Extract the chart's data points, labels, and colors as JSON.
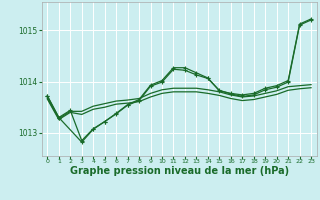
{
  "bg_color": "#cceef0",
  "grid_color": "#e8f8f8",
  "line_color": "#1a6b2a",
  "xlabel": "Graphe pression niveau de la mer (hPa)",
  "xlabel_fontsize": 7.0,
  "xlim": [
    -0.5,
    23.5
  ],
  "ylim": [
    1012.55,
    1015.55
  ],
  "yticks": [
    1013,
    1014,
    1015
  ],
  "xticks": [
    0,
    1,
    2,
    3,
    4,
    5,
    6,
    7,
    8,
    9,
    10,
    11,
    12,
    13,
    14,
    15,
    16,
    17,
    18,
    19,
    20,
    21,
    22,
    23
  ],
  "series": [
    {
      "x": [
        0,
        1,
        2,
        3,
        4,
        5,
        6,
        7,
        8,
        9,
        10,
        11,
        12,
        13,
        14,
        15,
        16,
        17,
        18,
        19,
        20,
        21,
        22,
        23
      ],
      "y": [
        1013.68,
        1013.28,
        1013.42,
        1013.42,
        1013.52,
        1013.57,
        1013.62,
        1013.64,
        1013.67,
        1013.77,
        1013.84,
        1013.87,
        1013.87,
        1013.87,
        1013.84,
        1013.8,
        1013.74,
        1013.7,
        1013.72,
        1013.77,
        1013.82,
        1013.9,
        1013.92,
        1013.94
      ],
      "marker": null,
      "lw": 0.9
    },
    {
      "x": [
        0,
        1,
        2,
        3,
        4,
        5,
        6,
        7,
        8,
        9,
        10,
        11,
        12,
        13,
        14,
        15,
        16,
        17,
        18,
        19,
        20,
        21,
        22,
        23
      ],
      "y": [
        1013.66,
        1013.26,
        1013.4,
        1013.36,
        1013.46,
        1013.5,
        1013.56,
        1013.58,
        1013.61,
        1013.7,
        1013.77,
        1013.8,
        1013.8,
        1013.8,
        1013.77,
        1013.73,
        1013.67,
        1013.63,
        1013.65,
        1013.7,
        1013.75,
        1013.83,
        1013.86,
        1013.88
      ],
      "marker": null,
      "lw": 0.9
    },
    {
      "x": [
        0,
        1,
        2,
        3,
        4,
        5,
        6,
        7,
        8,
        9,
        10,
        11,
        12,
        13,
        14,
        15,
        16,
        17,
        18,
        19,
        20,
        21,
        22,
        23
      ],
      "y": [
        1013.72,
        1013.3,
        1013.44,
        1012.85,
        1013.08,
        1013.22,
        1013.38,
        1013.55,
        1013.65,
        1013.93,
        1014.02,
        1014.27,
        1014.27,
        1014.17,
        1014.07,
        1013.82,
        1013.77,
        1013.74,
        1013.77,
        1013.87,
        1013.92,
        1014.02,
        1015.12,
        1015.22
      ],
      "marker": "+",
      "lw": 0.9
    },
    {
      "x": [
        0,
        1,
        3,
        4,
        5,
        6,
        7,
        8,
        9,
        10,
        11,
        12,
        13,
        14,
        15,
        16,
        17,
        18,
        19,
        20,
        21,
        22,
        23
      ],
      "y": [
        1013.72,
        1013.3,
        1012.82,
        1013.07,
        1013.22,
        1013.37,
        1013.54,
        1013.63,
        1013.91,
        1013.99,
        1014.24,
        1014.22,
        1014.13,
        1014.06,
        1013.83,
        1013.76,
        1013.71,
        1013.74,
        1013.84,
        1013.89,
        1013.99,
        1015.1,
        1015.2
      ],
      "marker": "+",
      "lw": 0.9
    }
  ]
}
